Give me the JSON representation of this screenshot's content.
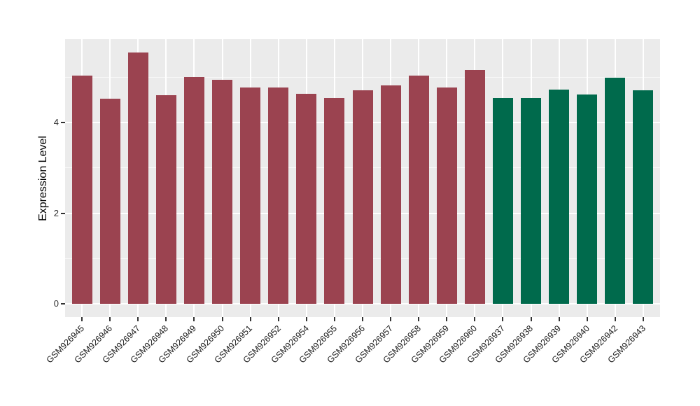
{
  "chart_data": {
    "type": "bar",
    "title": "",
    "xlabel": "",
    "ylabel": "Expression Level",
    "ylim": [
      -0.3,
      5.85
    ],
    "yticks": [
      {
        "value": 0,
        "label": "0"
      },
      {
        "value": 2,
        "label": "2"
      },
      {
        "value": 4,
        "label": "4"
      }
    ],
    "yticks_minor": [
      1,
      3,
      5
    ],
    "legend": "none",
    "grid": "white major+minor horizontal lines and white vertical category lines on gray panel",
    "colors": {
      "panel_bg": "#EBEBEB",
      "gridline": "#FFFFFF",
      "maroon_group": "#9B4350",
      "green_group": "#006A4C"
    },
    "bars": [
      {
        "label": "GSM926945",
        "value": 5.04,
        "group": "maroon_group"
      },
      {
        "label": "GSM926946",
        "value": 4.53,
        "group": "maroon_group"
      },
      {
        "label": "GSM926947",
        "value": 5.56,
        "group": "maroon_group"
      },
      {
        "label": "GSM926948",
        "value": 4.61,
        "group": "maroon_group"
      },
      {
        "label": "GSM926949",
        "value": 5.02,
        "group": "maroon_group"
      },
      {
        "label": "GSM926950",
        "value": 4.95,
        "group": "maroon_group"
      },
      {
        "label": "GSM926951",
        "value": 4.78,
        "group": "maroon_group"
      },
      {
        "label": "GSM926952",
        "value": 4.78,
        "group": "maroon_group"
      },
      {
        "label": "GSM926954",
        "value": 4.64,
        "group": "maroon_group"
      },
      {
        "label": "GSM926955",
        "value": 4.55,
        "group": "maroon_group"
      },
      {
        "label": "GSM926956",
        "value": 4.72,
        "group": "maroon_group"
      },
      {
        "label": "GSM926957",
        "value": 4.83,
        "group": "maroon_group"
      },
      {
        "label": "GSM926958",
        "value": 5.04,
        "group": "maroon_group"
      },
      {
        "label": "GSM926959",
        "value": 4.78,
        "group": "maroon_group"
      },
      {
        "label": "GSM926960",
        "value": 5.17,
        "group": "maroon_group"
      },
      {
        "label": "GSM926937",
        "value": 4.55,
        "group": "green_group"
      },
      {
        "label": "GSM926938",
        "value": 4.55,
        "group": "green_group"
      },
      {
        "label": "GSM926939",
        "value": 4.74,
        "group": "green_group"
      },
      {
        "label": "GSM926940",
        "value": 4.63,
        "group": "green_group"
      },
      {
        "label": "GSM926942",
        "value": 5.0,
        "group": "green_group"
      },
      {
        "label": "GSM926943",
        "value": 4.72,
        "group": "green_group"
      }
    ]
  }
}
